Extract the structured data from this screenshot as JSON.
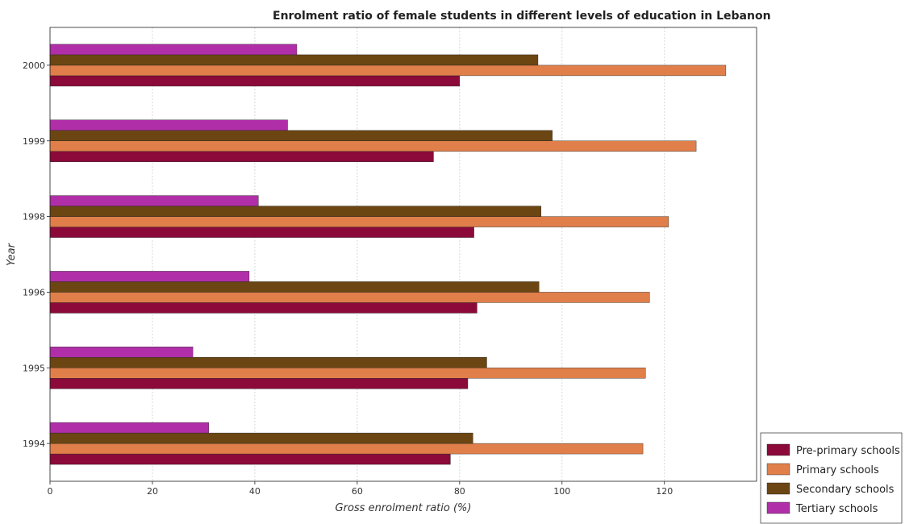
{
  "chart_data": {
    "type": "bar",
    "orientation": "horizontal",
    "title": "Enrolment ratio of female students in different levels of education in Lebanon",
    "xlabel": "Gross enrolment ratio (%)",
    "ylabel": "Year",
    "xlim": [
      0,
      138
    ],
    "xticks": [
      0,
      20,
      40,
      60,
      80,
      100,
      120
    ],
    "grid": "vertical dashed",
    "legend_placement": "bottom-right",
    "categories": [
      "1994",
      "1995",
      "1996",
      "1998",
      "1999",
      "2000"
    ],
    "series": [
      {
        "name": "Pre-primary schools",
        "color": "#8b0a3a",
        "values": [
          78.2,
          81.6,
          83.4,
          82.8,
          74.9,
          80.0
        ]
      },
      {
        "name": "Primary schools",
        "color": "#e07f4a",
        "values": [
          115.8,
          116.3,
          117.1,
          120.8,
          126.2,
          132.0
        ]
      },
      {
        "name": "Secondary schools",
        "color": "#6b4613",
        "values": [
          82.6,
          85.3,
          95.5,
          95.9,
          98.1,
          95.3
        ]
      },
      {
        "name": "Tertiary schools",
        "color": "#b02fa8",
        "values": [
          31.0,
          27.9,
          38.9,
          40.7,
          46.4,
          48.2
        ]
      }
    ]
  }
}
